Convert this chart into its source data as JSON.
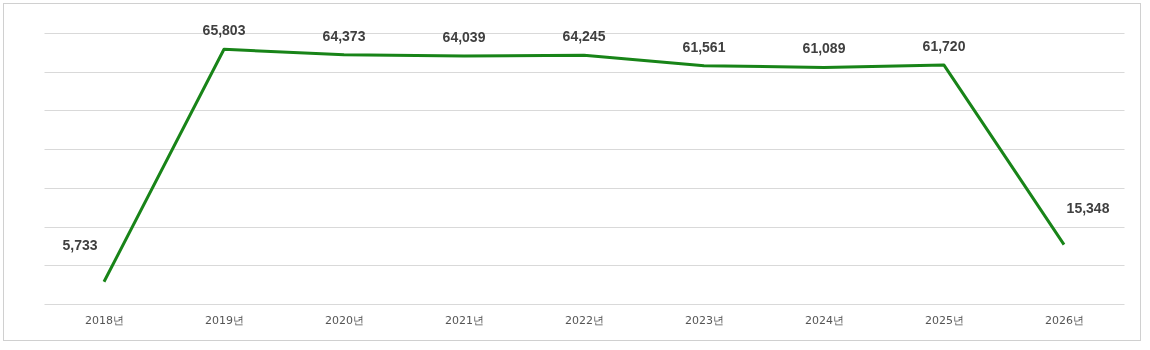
{
  "chart_data": {
    "type": "line",
    "categories": [
      "2018년",
      "2019년",
      "2020년",
      "2021년",
      "2022년",
      "2023년",
      "2024년",
      "2025년",
      "2026년"
    ],
    "series": [
      {
        "color": "#188418",
        "values": [
          5733,
          65803,
          64373,
          64039,
          64245,
          61561,
          61089,
          61720,
          15348
        ],
        "value_labels": [
          "5,733",
          "65,803",
          "64,373",
          "64,039",
          "64,245",
          "61,561",
          "61,089",
          "61,720",
          "15,348"
        ]
      }
    ],
    "grid": "y",
    "tick_labels": "x",
    "marker": "none",
    "line_style": "solid",
    "legend": false
  }
}
